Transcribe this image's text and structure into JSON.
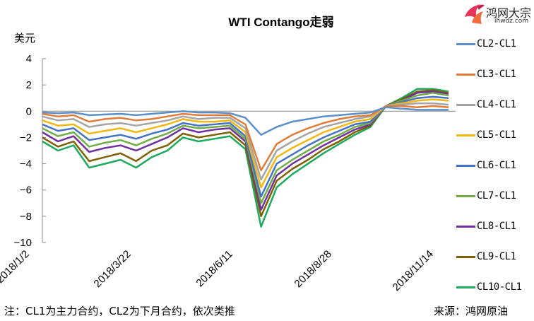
{
  "header": {
    "title": "WTI Contango走弱",
    "unit_label": "美元",
    "logo_text": "鸿网大宗",
    "logo_sub": "ihwdz.com"
  },
  "footer": {
    "note": "注：CL1为主力合约，CL2为下月合约，依次类推",
    "source": "来源：鸿网原油"
  },
  "chart_data": {
    "type": "line",
    "title": "WTI Contango走弱",
    "xlabel": "",
    "ylabel": "美元",
    "ylim": [
      -10,
      4
    ],
    "yticks": [
      4,
      2,
      0,
      -2,
      -4,
      -6,
      -8,
      -10
    ],
    "x_tick_labels": [
      "2018/1/2",
      "2018/3/22",
      "2018/6/11",
      "2018/8/28",
      "2018/11/14"
    ],
    "grid": false,
    "zero_line": true,
    "legend_position": "right",
    "x": [
      "2018/1/2",
      "2018/1/16",
      "2018/1/30",
      "2018/2/13",
      "2018/2/27",
      "2018/3/13",
      "2018/3/22",
      "2018/4/5",
      "2018/4/19",
      "2018/5/3",
      "2018/5/17",
      "2018/5/31",
      "2018/6/11",
      "2018/6/25",
      "2018/7/9",
      "2018/7/23",
      "2018/8/6",
      "2018/8/14",
      "2018/8/28",
      "2018/9/11",
      "2018/9/25",
      "2018/10/9",
      "2018/10/23",
      "2018/11/6",
      "2018/11/14",
      "2018/11/28",
      "2018/12/12"
    ],
    "series": [
      {
        "name": "CL2-CL1",
        "color": "#5b8fc7",
        "values": [
          -0.1,
          -0.15,
          -0.1,
          -0.3,
          -0.25,
          -0.2,
          -0.3,
          -0.2,
          -0.1,
          0.0,
          -0.1,
          -0.1,
          -0.15,
          -0.5,
          -1.8,
          -1.2,
          -0.8,
          -0.6,
          -0.4,
          -0.3,
          -0.2,
          -0.1,
          0.3,
          0.2,
          0.1,
          0.1,
          0.1
        ]
      },
      {
        "name": "CL3-CL1",
        "color": "#e07b39",
        "values": [
          -0.2,
          -0.4,
          -0.3,
          -0.8,
          -0.6,
          -0.5,
          -0.7,
          -0.6,
          -0.4,
          -0.2,
          -0.3,
          -0.3,
          -0.3,
          -1.0,
          -4.5,
          -2.5,
          -1.8,
          -1.3,
          -0.9,
          -0.6,
          -0.4,
          -0.3,
          0.4,
          0.4,
          0.3,
          0.4,
          0.3
        ]
      },
      {
        "name": "CL4-CL1",
        "color": "#a5a5a5",
        "values": [
          -0.4,
          -0.7,
          -0.6,
          -1.2,
          -1.0,
          -0.9,
          -1.1,
          -0.9,
          -0.7,
          -0.4,
          -0.6,
          -0.5,
          -0.5,
          -1.3,
          -5.2,
          -3.0,
          -2.3,
          -1.7,
          -1.2,
          -0.9,
          -0.6,
          -0.4,
          0.4,
          0.5,
          0.6,
          0.6,
          0.5
        ]
      },
      {
        "name": "CL5-CL1",
        "color": "#f1b712",
        "values": [
          -0.7,
          -1.1,
          -1.0,
          -1.7,
          -1.5,
          -1.3,
          -1.6,
          -1.3,
          -1.0,
          -0.6,
          -0.8,
          -0.8,
          -0.7,
          -1.6,
          -5.8,
          -3.5,
          -2.8,
          -2.2,
          -1.6,
          -1.2,
          -0.8,
          -0.6,
          0.4,
          0.6,
          0.8,
          0.9,
          0.8
        ]
      },
      {
        "name": "CL6-CL1",
        "color": "#4472c4",
        "values": [
          -1.0,
          -1.5,
          -1.3,
          -2.2,
          -2.0,
          -1.8,
          -2.1,
          -1.7,
          -1.4,
          -0.9,
          -1.1,
          -1.0,
          -0.9,
          -1.9,
          -6.5,
          -4.0,
          -3.3,
          -2.6,
          -2.0,
          -1.5,
          -1.0,
          -0.8,
          0.4,
          0.7,
          1.0,
          1.1,
          1.0
        ]
      },
      {
        "name": "CL7-CL1",
        "color": "#70ad47",
        "values": [
          -1.3,
          -1.9,
          -1.6,
          -2.7,
          -2.4,
          -2.2,
          -2.6,
          -2.1,
          -1.7,
          -1.1,
          -1.3,
          -1.2,
          -1.1,
          -2.1,
          -7.0,
          -4.5,
          -3.7,
          -3.0,
          -2.3,
          -1.8,
          -1.2,
          -0.9,
          0.4,
          0.8,
          1.2,
          1.4,
          1.2
        ]
      },
      {
        "name": "CL8-CL1",
        "color": "#7030a0",
        "values": [
          -1.6,
          -2.3,
          -1.9,
          -3.1,
          -2.8,
          -2.6,
          -3.0,
          -2.5,
          -2.0,
          -1.3,
          -1.6,
          -1.4,
          -1.3,
          -2.3,
          -7.5,
          -4.9,
          -4.0,
          -3.3,
          -2.6,
          -2.0,
          -1.4,
          -1.0,
          0.4,
          0.8,
          1.4,
          1.5,
          1.3
        ]
      },
      {
        "name": "CL9-CL1",
        "color": "#7f6000",
        "values": [
          -2.0,
          -2.7,
          -2.3,
          -3.8,
          -3.5,
          -3.2,
          -3.8,
          -3.0,
          -2.6,
          -1.7,
          -2.0,
          -1.8,
          -1.6,
          -2.6,
          -8.0,
          -5.3,
          -4.4,
          -3.7,
          -2.9,
          -2.3,
          -1.6,
          -1.1,
          0.4,
          0.9,
          1.5,
          1.6,
          1.4
        ]
      },
      {
        "name": "CL10-CL1",
        "color": "#1daa5e",
        "values": [
          -2.3,
          -3.0,
          -2.6,
          -4.3,
          -4.0,
          -3.7,
          -4.3,
          -3.5,
          -3.0,
          -2.0,
          -2.3,
          -2.1,
          -1.9,
          -2.9,
          -8.8,
          -5.8,
          -4.8,
          -4.0,
          -3.2,
          -2.5,
          -1.8,
          -1.2,
          0.4,
          1.0,
          1.7,
          1.7,
          1.5
        ]
      }
    ]
  }
}
